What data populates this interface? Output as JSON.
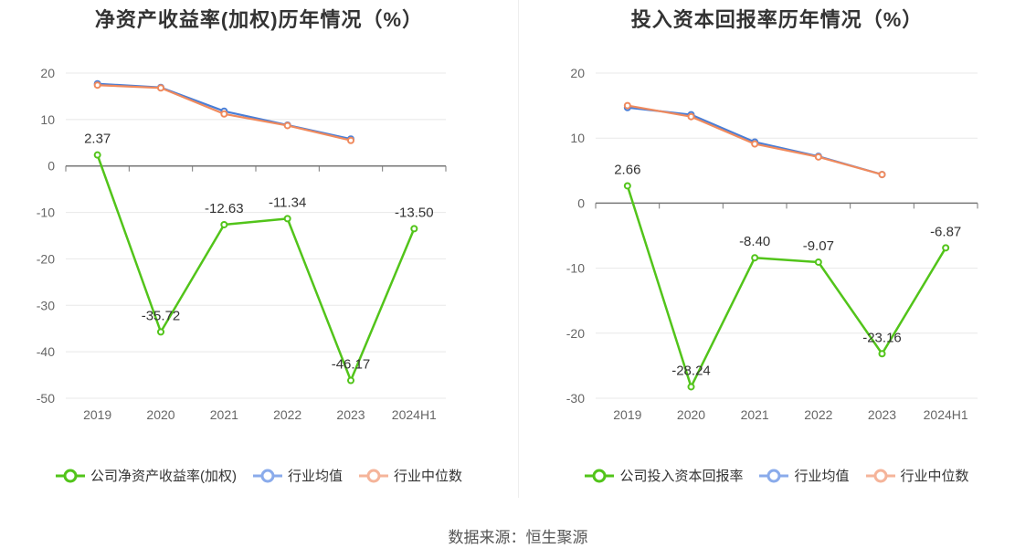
{
  "chart_data": [
    {
      "type": "line",
      "title": "净资产收益率(加权)历年情况（%）",
      "categories": [
        "2019",
        "2020",
        "2021",
        "2022",
        "2023",
        "2024H1"
      ],
      "ylim": [
        -50,
        20
      ],
      "yticks": [
        20,
        10,
        0,
        -10,
        -20,
        -30,
        -40,
        -50
      ],
      "series": [
        {
          "name": "公司净资产收益率(加权)",
          "color": "#52c41a",
          "values": [
            2.37,
            -35.72,
            -12.63,
            -11.34,
            -46.17,
            -13.5
          ],
          "labels": [
            "2.37",
            "-35.72",
            "-12.63",
            "-11.34",
            "-46.17",
            "-13.50"
          ]
        },
        {
          "name": "行业均值",
          "color": "#4a7ed6",
          "values": [
            17.7,
            16.9,
            11.8,
            8.8,
            5.8,
            null
          ]
        },
        {
          "name": "行业中位数",
          "color": "#f08a5d",
          "values": [
            17.4,
            16.8,
            11.2,
            8.7,
            5.5,
            null
          ]
        }
      ],
      "grid": true,
      "legend": "bottom"
    },
    {
      "type": "line",
      "title": "投入资本回报率历年情况（%）",
      "categories": [
        "2019",
        "2020",
        "2021",
        "2022",
        "2023",
        "2024H1"
      ],
      "ylim": [
        -30,
        20
      ],
      "yticks": [
        20,
        10,
        0,
        -10,
        -20,
        -30
      ],
      "series": [
        {
          "name": "公司投入资本回报率",
          "color": "#52c41a",
          "values": [
            2.66,
            -28.24,
            -8.4,
            -9.07,
            -23.16,
            -6.87
          ],
          "labels": [
            "2.66",
            "-28.24",
            "-8.40",
            "-9.07",
            "-23.16",
            "-6.87"
          ]
        },
        {
          "name": "行业均值",
          "color": "#4a7ed6",
          "values": [
            14.7,
            13.6,
            9.4,
            7.2,
            4.4,
            null
          ]
        },
        {
          "name": "行业中位数",
          "color": "#f08a5d",
          "values": [
            15.0,
            13.3,
            9.1,
            7.1,
            4.4,
            null
          ]
        }
      ],
      "grid": true,
      "legend": "bottom"
    }
  ],
  "legend_colors": {
    "company": "#52c41a",
    "avg": "#8aabeb",
    "median": "#f5b49a"
  },
  "footer": {
    "source": "数据来源：恒生聚源"
  }
}
